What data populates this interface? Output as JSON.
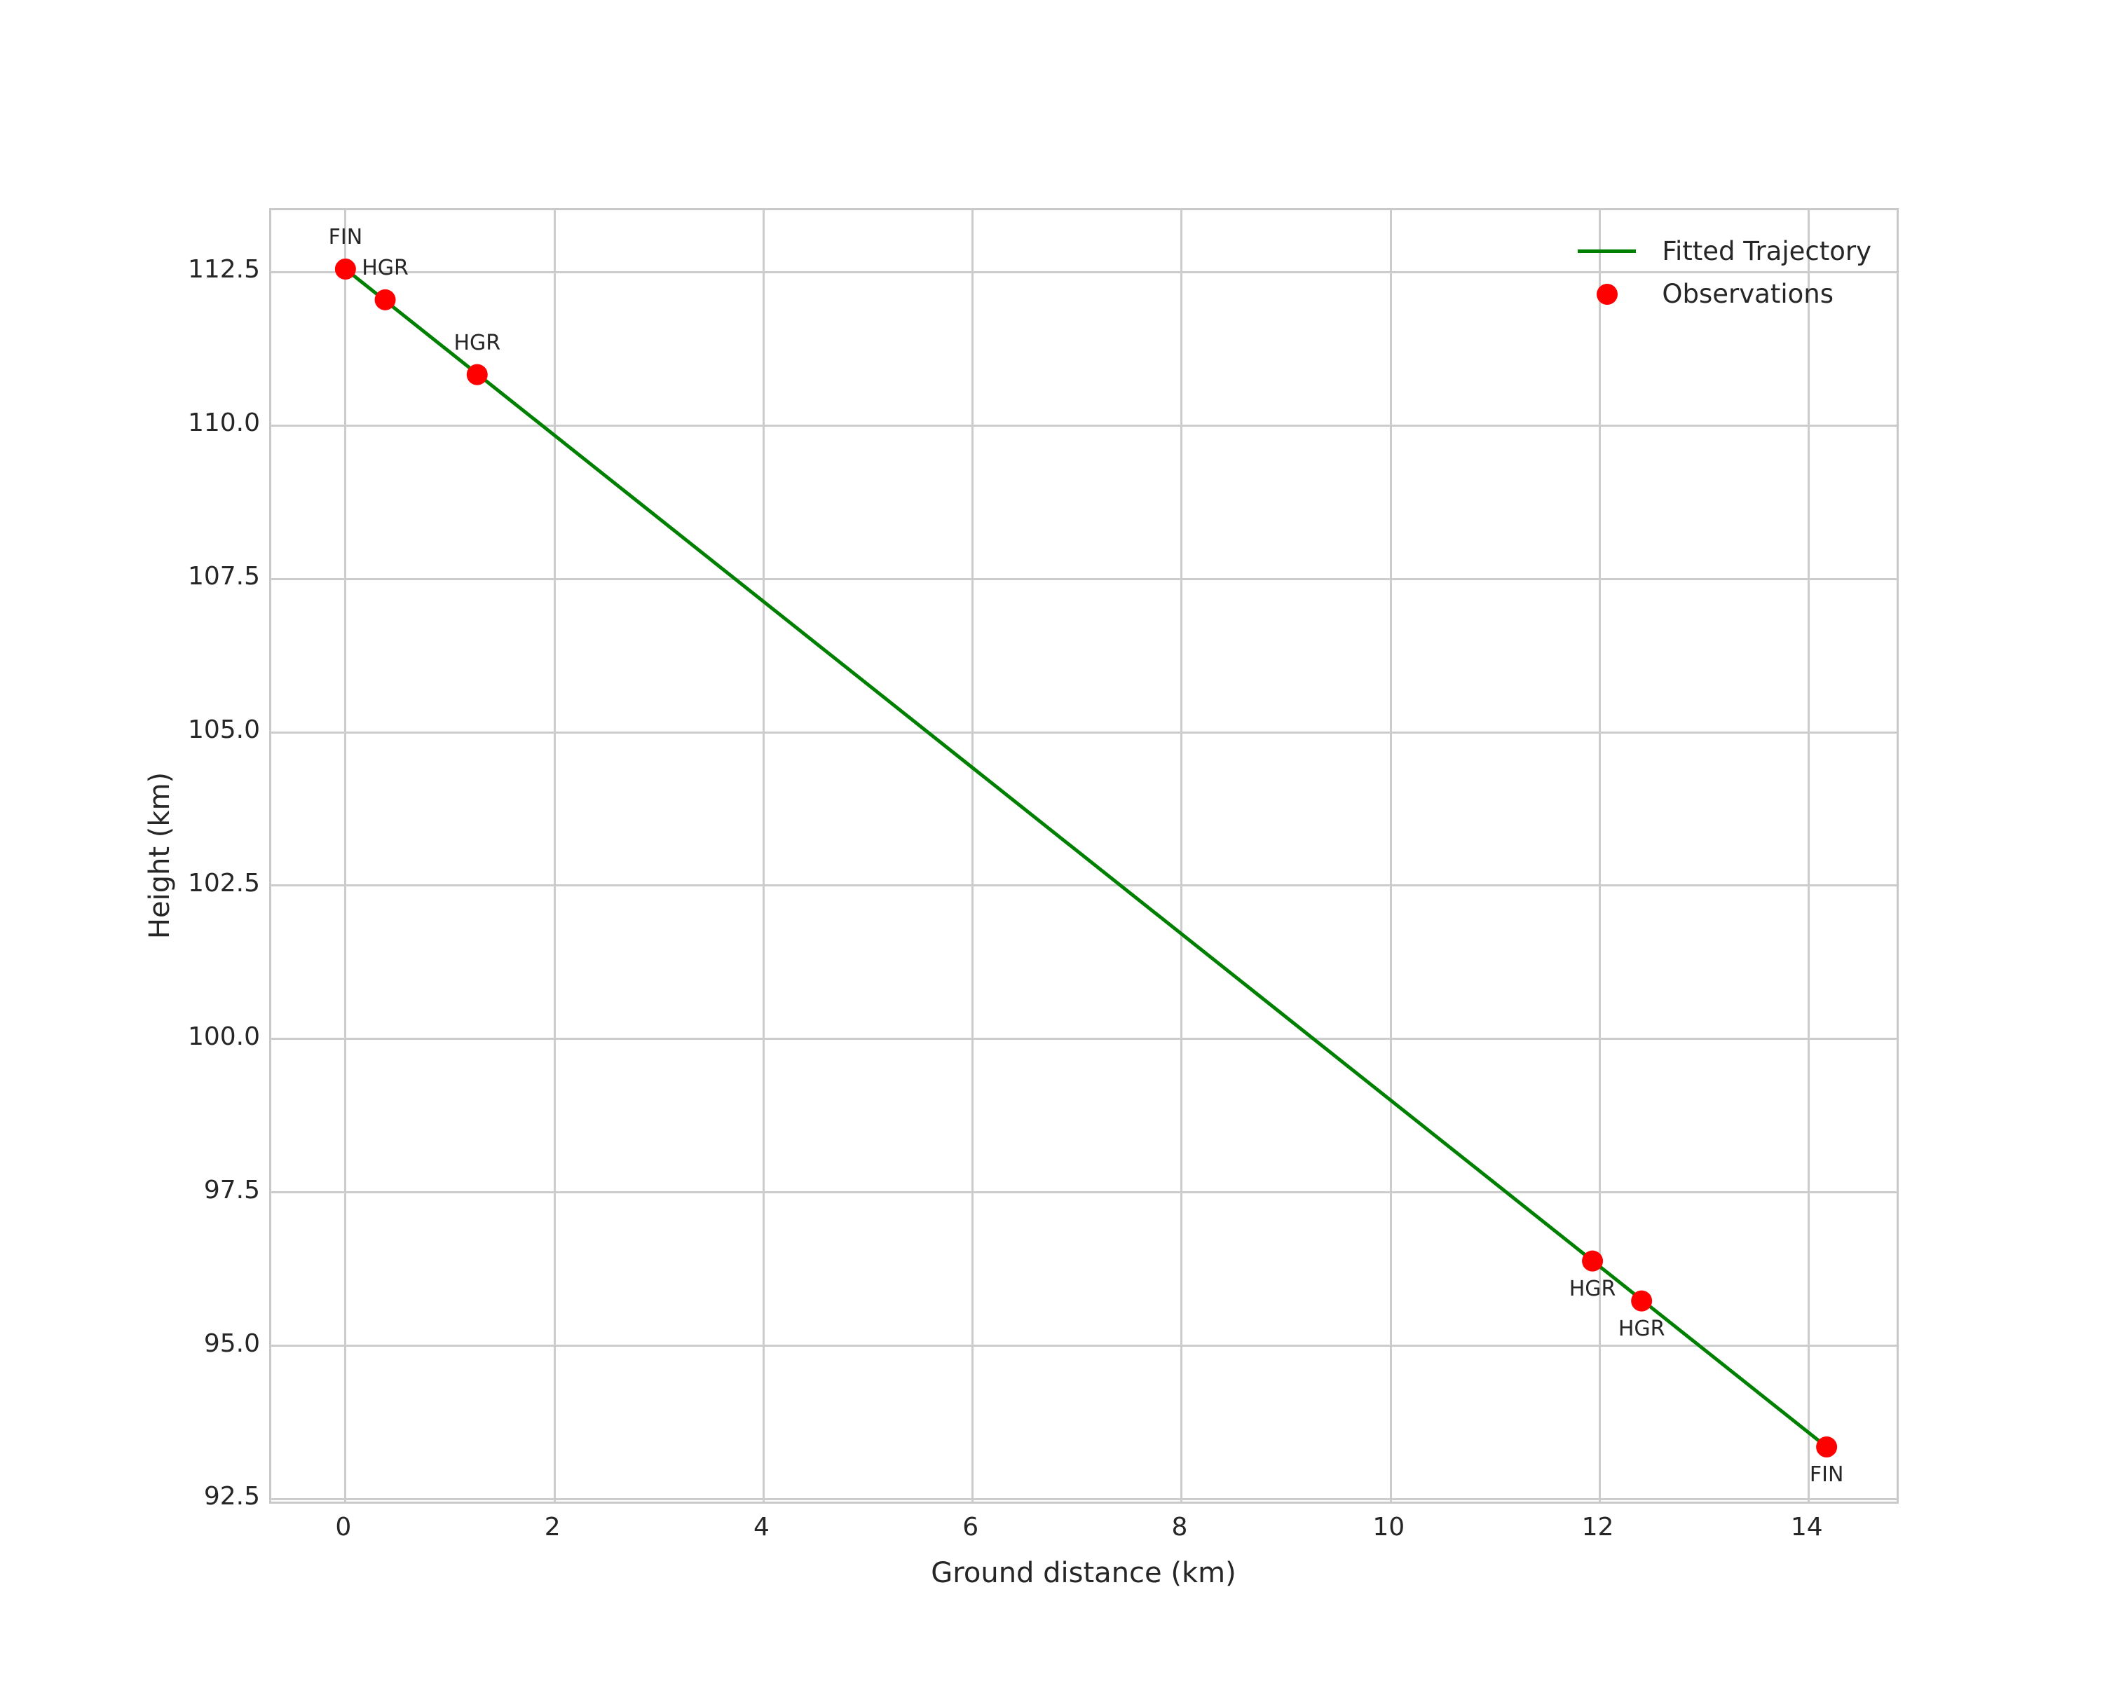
{
  "chart_data": {
    "type": "line",
    "title": "",
    "xlabel": "Ground distance (km)",
    "ylabel": "Height (km)",
    "xlim": [
      -0.71,
      14.88
    ],
    "ylim": [
      92.39,
      113.51
    ],
    "grid": true,
    "x_ticks": [
      0,
      2,
      4,
      6,
      8,
      10,
      12,
      14
    ],
    "x_tick_labels": [
      "0",
      "2",
      "4",
      "6",
      "8",
      "10",
      "12",
      "14"
    ],
    "y_ticks": [
      92.5,
      95.0,
      97.5,
      100.0,
      102.5,
      105.0,
      107.5,
      110.0,
      112.5
    ],
    "y_tick_labels": [
      "92.5",
      "95.0",
      "97.5",
      "100.0",
      "102.5",
      "105.0",
      "107.5",
      "110.0",
      "112.5"
    ],
    "series": [
      {
        "name": "Fitted Trajectory",
        "type": "line",
        "color": "#008000",
        "line_width": 5,
        "points": [
          [
            0.0,
            112.55
          ],
          [
            14.17,
            93.35
          ]
        ]
      },
      {
        "name": "Observations",
        "type": "scatter",
        "color": "#ff0000",
        "marker_radius": 15,
        "points": [
          [
            0.0,
            112.55
          ],
          [
            0.38,
            112.05
          ],
          [
            1.26,
            110.83
          ],
          [
            11.93,
            96.38
          ],
          [
            12.4,
            95.73
          ],
          [
            14.17,
            93.35
          ]
        ]
      }
    ],
    "annotations": [
      {
        "text": "FIN",
        "x": 0.0,
        "y": 112.55,
        "placement": "above"
      },
      {
        "text": "HGR",
        "x": 0.38,
        "y": 112.05,
        "placement": "above"
      },
      {
        "text": "HGR",
        "x": 1.26,
        "y": 110.83,
        "placement": "above"
      },
      {
        "text": "HGR",
        "x": 11.93,
        "y": 96.38,
        "placement": "below"
      },
      {
        "text": "HGR",
        "x": 12.4,
        "y": 95.73,
        "placement": "below"
      },
      {
        "text": "FIN",
        "x": 14.17,
        "y": 93.35,
        "placement": "below"
      }
    ],
    "legend": {
      "position": "upper-right",
      "items": [
        {
          "label": "Fitted Trajectory",
          "marker": "line",
          "color": "#008000"
        },
        {
          "label": "Observations",
          "marker": "dot",
          "color": "#ff0000"
        }
      ]
    },
    "colors": {
      "grid": "#cccccc",
      "spine": "#c9c9c9",
      "text": "#262626",
      "background": "#ffffff"
    }
  }
}
